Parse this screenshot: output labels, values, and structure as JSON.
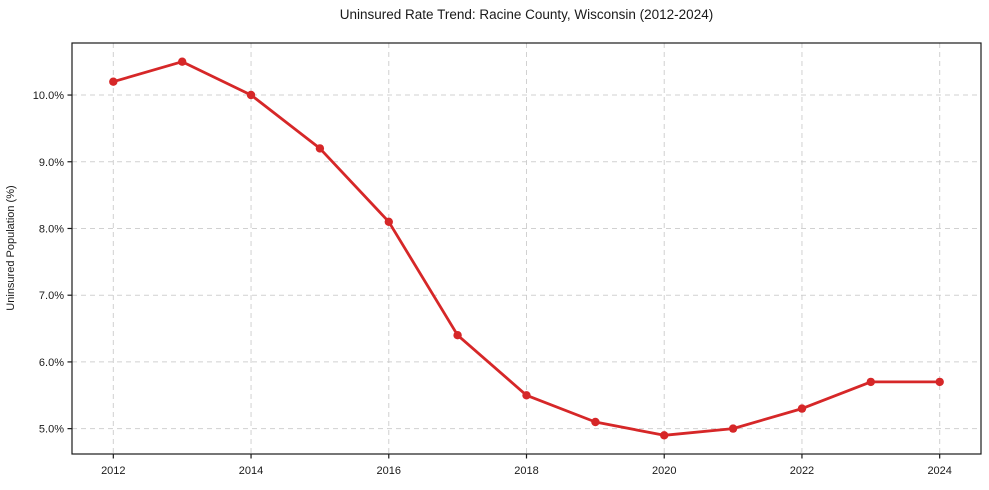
{
  "chart_data": {
    "type": "line",
    "title": "Uninsured Rate Trend: Racine County, Wisconsin (2012-2024)",
    "xlabel": "",
    "ylabel": "Uninsured Population (%)",
    "x": [
      2012,
      2013,
      2014,
      2015,
      2016,
      2017,
      2018,
      2019,
      2020,
      2021,
      2022,
      2023,
      2024
    ],
    "values": [
      10.2,
      10.5,
      10.0,
      9.2,
      8.1,
      6.4,
      5.5,
      5.1,
      4.9,
      5.0,
      5.3,
      5.7,
      5.7
    ],
    "x_ticks": [
      2012,
      2014,
      2016,
      2018,
      2020,
      2022,
      2024
    ],
    "x_tick_labels": [
      "2012",
      "2014",
      "2016",
      "2018",
      "2020",
      "2022",
      "2024"
    ],
    "y_ticks": [
      5.0,
      6.0,
      7.0,
      8.0,
      9.0,
      10.0
    ],
    "y_tick_labels": [
      "5.0%",
      "6.0%",
      "7.0%",
      "8.0%",
      "9.0%",
      "10.0%"
    ],
    "xlim": [
      2011.4,
      2024.6
    ],
    "ylim": [
      4.62,
      10.78
    ],
    "grid": true,
    "legend": "none",
    "colors": {
      "line": "#d62728",
      "marker": "#d62728",
      "grid": "#c9c9c9",
      "spine": "#1a1a1a",
      "background": "#ffffff",
      "text": "#1a1a1a"
    }
  }
}
